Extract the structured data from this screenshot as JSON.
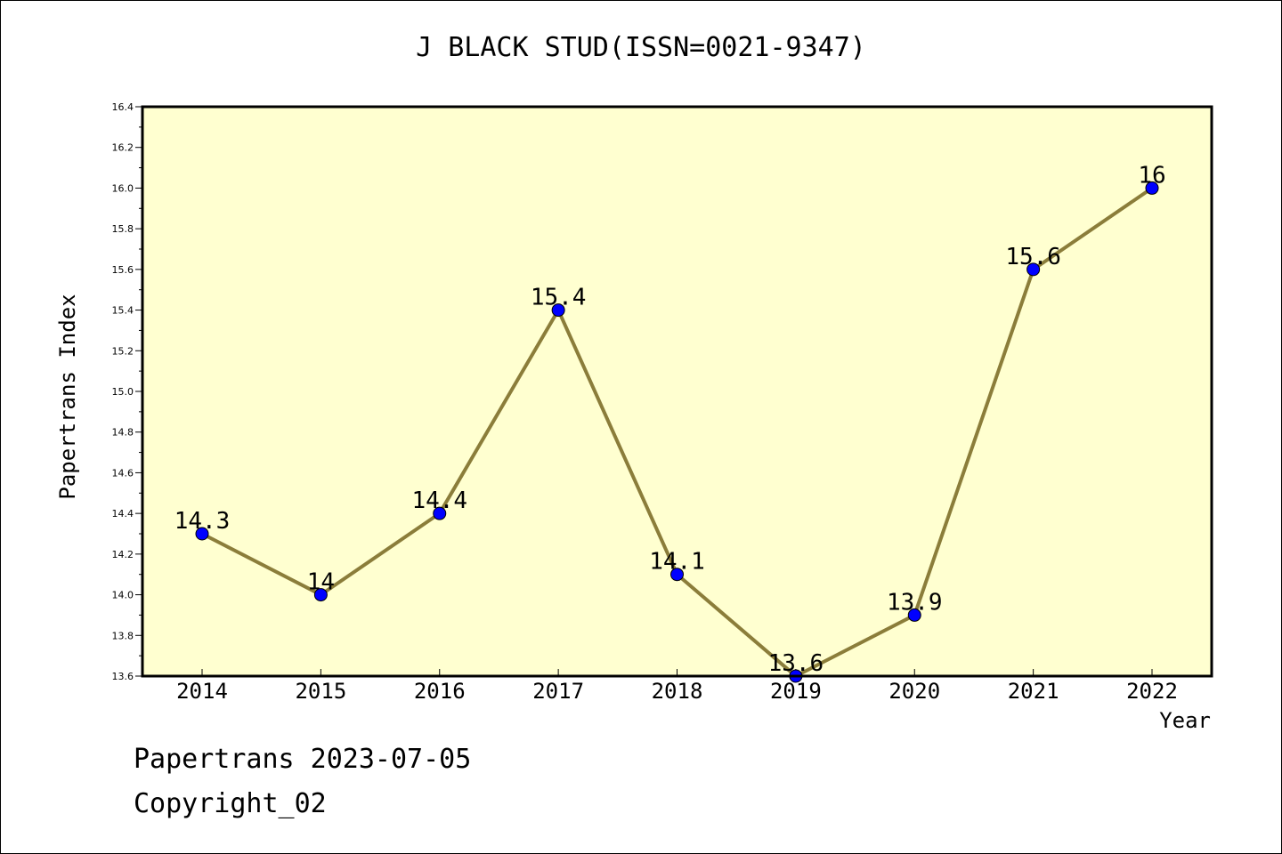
{
  "chart_data": {
    "type": "line",
    "title": "J BLACK STUD(ISSN=0021-9347)",
    "xlabel": "Year",
    "ylabel": "Papertrans Index",
    "categories": [
      "2014",
      "2015",
      "2016",
      "2017",
      "2018",
      "2019",
      "2020",
      "2021",
      "2022"
    ],
    "values": [
      14.3,
      14.0,
      14.4,
      15.4,
      14.1,
      13.6,
      13.9,
      15.6,
      16.0
    ],
    "data_labels": [
      "14.3",
      "14",
      "14.4",
      "15.4",
      "14.1",
      "13.6",
      "13.9",
      "15.6",
      "16"
    ],
    "ylim": [
      13.6,
      16.4
    ],
    "yticks": [
      "13.6",
      "13.8",
      "14.0",
      "14.2",
      "14.4",
      "14.6",
      "14.8",
      "15.0",
      "15.2",
      "15.4",
      "15.6",
      "15.8",
      "16.0",
      "16.2",
      "16.4"
    ],
    "grid": false,
    "legend": "none",
    "colors": {
      "plot_background": "#ffffd0",
      "line": "#8b7d3a",
      "marker": "#0000ff"
    }
  },
  "footer": {
    "line1": "Papertrans 2023-07-05",
    "line2": "Copyright_02"
  }
}
